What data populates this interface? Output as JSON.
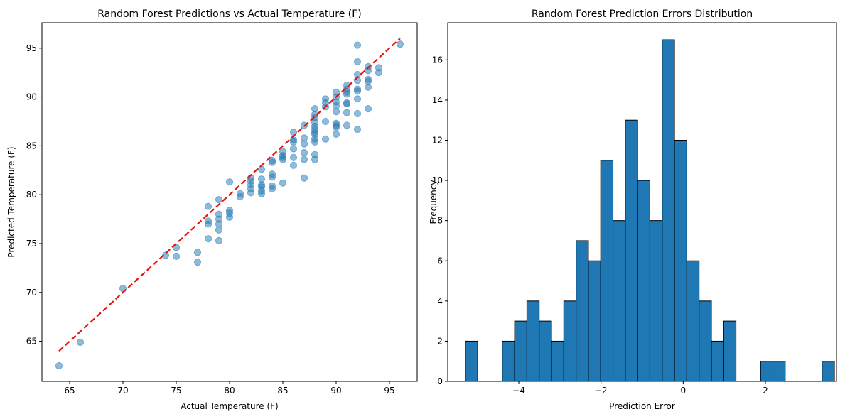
{
  "chart_data": [
    {
      "type": "scatter",
      "title": "Random Forest Predictions vs Actual Temperature (F)",
      "xlabel": "Actual Temperature (F)",
      "ylabel": "Predicted Temperature (F)",
      "xlim": [
        62.4,
        97.6
      ],
      "ylim": [
        60.9,
        97.6
      ],
      "xticks": [
        65,
        70,
        75,
        80,
        85,
        90,
        95
      ],
      "yticks": [
        65,
        70,
        75,
        80,
        85,
        90,
        95
      ],
      "grid": false,
      "point_color": "#1f77b4",
      "reference_line": {
        "x": [
          64,
          96
        ],
        "y": [
          64,
          96
        ],
        "color": "#e8120c",
        "style": "dashed"
      },
      "points": [
        [
          64,
          62.5
        ],
        [
          66,
          64.9
        ],
        [
          70,
          70.4
        ],
        [
          74,
          73.8
        ],
        [
          75,
          74.6
        ],
        [
          75,
          73.7
        ],
        [
          77,
          74.1
        ],
        [
          77,
          73.1
        ],
        [
          78,
          78.8
        ],
        [
          78,
          77.3
        ],
        [
          78,
          77.0
        ],
        [
          78,
          75.5
        ],
        [
          79,
          79.5
        ],
        [
          79,
          78.0
        ],
        [
          79,
          77.5
        ],
        [
          79,
          77.0
        ],
        [
          79,
          76.4
        ],
        [
          79,
          75.3
        ],
        [
          80,
          81.3
        ],
        [
          80,
          78.4
        ],
        [
          80,
          78.1
        ],
        [
          80,
          77.7
        ],
        [
          81,
          80.1
        ],
        [
          81,
          79.8
        ],
        [
          82,
          81.7
        ],
        [
          82,
          81.4
        ],
        [
          82,
          81.0
        ],
        [
          82,
          80.6
        ],
        [
          82,
          80.2
        ],
        [
          83,
          82.6
        ],
        [
          83,
          81.6
        ],
        [
          83,
          81.0
        ],
        [
          83,
          80.8
        ],
        [
          83,
          80.4
        ],
        [
          83,
          80.1
        ],
        [
          84,
          83.5
        ],
        [
          84,
          83.3
        ],
        [
          84,
          82.1
        ],
        [
          84,
          81.8
        ],
        [
          84,
          80.9
        ],
        [
          84,
          80.6
        ],
        [
          85,
          84.4
        ],
        [
          85,
          84.0
        ],
        [
          85,
          83.8
        ],
        [
          85,
          83.6
        ],
        [
          85,
          81.2
        ],
        [
          86,
          86.4
        ],
        [
          86,
          85.6
        ],
        [
          86,
          85.4
        ],
        [
          86,
          84.7
        ],
        [
          86,
          83.8
        ],
        [
          86,
          83.0
        ],
        [
          87,
          87.1
        ],
        [
          87,
          85.8
        ],
        [
          87,
          85.2
        ],
        [
          87,
          84.3
        ],
        [
          87,
          83.6
        ],
        [
          87,
          81.7
        ],
        [
          88,
          88.8
        ],
        [
          88,
          88.2
        ],
        [
          88,
          87.9
        ],
        [
          88,
          87.4
        ],
        [
          88,
          87.0
        ],
        [
          88,
          86.7
        ],
        [
          88,
          86.4
        ],
        [
          88,
          86.2
        ],
        [
          88,
          85.7
        ],
        [
          88,
          85.4
        ],
        [
          88,
          84.1
        ],
        [
          88,
          83.6
        ],
        [
          89,
          89.8
        ],
        [
          89,
          89.4
        ],
        [
          89,
          89.0
        ],
        [
          89,
          87.5
        ],
        [
          89,
          85.7
        ],
        [
          90,
          90.5
        ],
        [
          90,
          90.0
        ],
        [
          90,
          89.5
        ],
        [
          90,
          89.1
        ],
        [
          90,
          88.5
        ],
        [
          90,
          87.3
        ],
        [
          90,
          87.1
        ],
        [
          90,
          86.9
        ],
        [
          90,
          86.2
        ],
        [
          91,
          91.2
        ],
        [
          91,
          90.8
        ],
        [
          91,
          90.5
        ],
        [
          91,
          90.3
        ],
        [
          91,
          89.4
        ],
        [
          91,
          89.3
        ],
        [
          91,
          88.4
        ],
        [
          91,
          87.1
        ],
        [
          92,
          95.3
        ],
        [
          92,
          93.6
        ],
        [
          92,
          92.3
        ],
        [
          92,
          91.7
        ],
        [
          92,
          90.8
        ],
        [
          92,
          90.6
        ],
        [
          92,
          89.8
        ],
        [
          92,
          88.3
        ],
        [
          92,
          86.7
        ],
        [
          93,
          93.1
        ],
        [
          93,
          92.7
        ],
        [
          93,
          91.8
        ],
        [
          93,
          91.6
        ],
        [
          93,
          91.0
        ],
        [
          93,
          88.8
        ],
        [
          94,
          93.0
        ],
        [
          94,
          92.5
        ],
        [
          96,
          95.4
        ]
      ]
    },
    {
      "type": "histogram",
      "title": "Random Forest Prediction Errors Distribution",
      "xlabel": "Prediction Error",
      "ylabel": "Frequency",
      "bin_start": -5.3,
      "bin_width": 0.2993,
      "counts": [
        2,
        0,
        0,
        2,
        3,
        4,
        3,
        2,
        4,
        7,
        6,
        11,
        8,
        13,
        10,
        8,
        17,
        12,
        6,
        4,
        2,
        3,
        0,
        0,
        1,
        1,
        0,
        0,
        0,
        1
      ],
      "xlim": [
        -5.73,
        3.73
      ],
      "ylim": [
        0,
        17.85
      ],
      "xticks": [
        -4,
        -2,
        0,
        2
      ],
      "xtick_labels": [
        "−4",
        "−2",
        "0",
        "2"
      ],
      "yticks": [
        0,
        2,
        4,
        6,
        8,
        10,
        12,
        14,
        16
      ],
      "bar_color": "#1f77b4",
      "edge_color": "#000000",
      "grid": false
    }
  ]
}
